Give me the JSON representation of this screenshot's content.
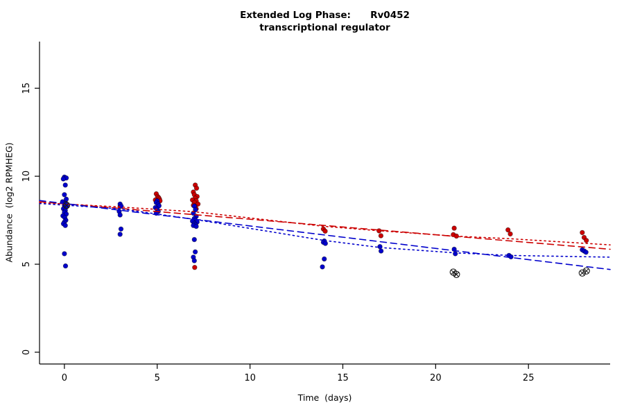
{
  "chart_data": {
    "type": "scatter",
    "title_line1": "Extended Log Phase:      Rv0452",
    "title_line2": "transcriptional regulator",
    "xlabel": "Time  (days)",
    "ylabel": "Abundance  (log2 RPMHEG)",
    "xlim": [
      -1.34,
      29.4
    ],
    "ylim": [
      -0.67,
      17.65
    ],
    "xticks": [
      0,
      5,
      10,
      15,
      20,
      25
    ],
    "yticks": [
      0,
      5,
      10,
      15
    ],
    "grid": false,
    "legend": "none",
    "axis_color": "#000000",
    "series": [
      {
        "name": "red-condition",
        "color": "#cc0000",
        "marker": "filled-circle",
        "points": [
          [
            0.05,
            8.52
          ],
          [
            0.12,
            8.3
          ],
          [
            3.0,
            8.28
          ],
          [
            4.95,
            9.0
          ],
          [
            5.02,
            8.85
          ],
          [
            5.08,
            8.78
          ],
          [
            5.12,
            8.7
          ],
          [
            4.9,
            8.65
          ],
          [
            5.15,
            8.6
          ],
          [
            5.0,
            8.55
          ],
          [
            7.05,
            9.5
          ],
          [
            7.12,
            9.32
          ],
          [
            6.95,
            9.1
          ],
          [
            7.0,
            8.95
          ],
          [
            7.15,
            8.85
          ],
          [
            7.05,
            8.75
          ],
          [
            6.9,
            8.65
          ],
          [
            7.1,
            8.6
          ],
          [
            7.0,
            8.5
          ],
          [
            7.2,
            8.42
          ],
          [
            6.95,
            8.35
          ],
          [
            7.05,
            8.28
          ],
          [
            7.1,
            8.15
          ],
          [
            7.02,
            4.82
          ],
          [
            13.95,
            7.0
          ],
          [
            14.05,
            6.88
          ],
          [
            16.95,
            6.9
          ],
          [
            17.05,
            6.62
          ],
          [
            21.0,
            7.05
          ],
          [
            20.95,
            6.68
          ],
          [
            21.12,
            6.6
          ],
          [
            23.9,
            6.95
          ],
          [
            24.02,
            6.72
          ],
          [
            27.9,
            6.8
          ],
          [
            28.0,
            6.52
          ],
          [
            28.12,
            6.35
          ]
        ]
      },
      {
        "name": "blue-condition",
        "color": "#0000cc",
        "marker": "filled-circle",
        "points": [
          [
            0.0,
            9.95
          ],
          [
            0.1,
            9.9
          ],
          [
            -0.06,
            9.85
          ],
          [
            0.05,
            9.5
          ],
          [
            0.0,
            8.95
          ],
          [
            0.1,
            8.7
          ],
          [
            -0.1,
            8.55
          ],
          [
            0.06,
            8.45
          ],
          [
            0.0,
            8.35
          ],
          [
            0.1,
            8.25
          ],
          [
            -0.05,
            8.15
          ],
          [
            0.05,
            8.05
          ],
          [
            0.0,
            7.95
          ],
          [
            0.1,
            7.85
          ],
          [
            -0.08,
            7.75
          ],
          [
            0.02,
            7.65
          ],
          [
            0.08,
            7.5
          ],
          [
            0.0,
            7.4
          ],
          [
            -0.05,
            7.3
          ],
          [
            0.05,
            7.2
          ],
          [
            0.0,
            5.6
          ],
          [
            0.06,
            4.9
          ],
          [
            3.0,
            8.42
          ],
          [
            3.06,
            8.3
          ],
          [
            2.95,
            8.0
          ],
          [
            3.0,
            7.8
          ],
          [
            3.05,
            7.0
          ],
          [
            3.0,
            6.7
          ],
          [
            5.0,
            8.6
          ],
          [
            4.95,
            8.5
          ],
          [
            5.05,
            8.42
          ],
          [
            5.1,
            8.32
          ],
          [
            4.9,
            8.22
          ],
          [
            5.0,
            8.12
          ],
          [
            5.06,
            8.0
          ],
          [
            4.95,
            7.9
          ],
          [
            7.0,
            8.3
          ],
          [
            7.06,
            8.1
          ],
          [
            6.95,
            7.9
          ],
          [
            7.1,
            7.72
          ],
          [
            7.0,
            7.6
          ],
          [
            7.05,
            7.5
          ],
          [
            6.9,
            7.45
          ],
          [
            7.15,
            7.4
          ],
          [
            7.0,
            7.32
          ],
          [
            7.06,
            7.25
          ],
          [
            6.95,
            7.2
          ],
          [
            7.1,
            7.15
          ],
          [
            7.0,
            6.4
          ],
          [
            7.05,
            5.7
          ],
          [
            6.95,
            5.4
          ],
          [
            7.0,
            5.2
          ],
          [
            14.0,
            6.32
          ],
          [
            13.95,
            6.25
          ],
          [
            14.06,
            6.18
          ],
          [
            14.0,
            5.3
          ],
          [
            13.9,
            4.85
          ],
          [
            17.0,
            6.0
          ],
          [
            17.06,
            5.75
          ],
          [
            21.0,
            5.85
          ],
          [
            21.06,
            5.6
          ],
          [
            23.95,
            5.5
          ],
          [
            24.06,
            5.42
          ],
          [
            27.9,
            5.82
          ],
          [
            28.0,
            5.75
          ],
          [
            28.1,
            5.68
          ]
        ]
      }
    ],
    "flagged_points": {
      "name": "circle-x-flagged",
      "color": "#1a1a1a",
      "marker": "circle-x",
      "points": [
        [
          0.12,
          8.35
        ],
        [
          20.95,
          4.55
        ],
        [
          21.12,
          4.42
        ],
        [
          27.9,
          4.5
        ],
        [
          28.12,
          4.62
        ]
      ]
    },
    "trend_lines": [
      {
        "name": "red-linear-fit",
        "color": "#cc0000",
        "style": "dashed",
        "points": [
          [
            -1.34,
            8.55
          ],
          [
            29.4,
            5.85
          ]
        ]
      },
      {
        "name": "red-smooth-fit",
        "color": "#cc0000",
        "style": "dotted",
        "points": [
          [
            -1.34,
            8.5
          ],
          [
            3,
            8.25
          ],
          [
            7,
            7.98
          ],
          [
            14,
            7.15
          ],
          [
            17,
            6.9
          ],
          [
            21,
            6.6
          ],
          [
            24,
            6.45
          ],
          [
            29.4,
            6.1
          ]
        ]
      },
      {
        "name": "blue-linear-fit",
        "color": "#0000cc",
        "style": "dashed",
        "points": [
          [
            -1.34,
            8.62
          ],
          [
            29.4,
            4.7
          ]
        ]
      },
      {
        "name": "blue-smooth-fit",
        "color": "#0000cc",
        "style": "dotted",
        "points": [
          [
            -1.34,
            8.45
          ],
          [
            3,
            8.15
          ],
          [
            7,
            7.55
          ],
          [
            14,
            6.35
          ],
          [
            17,
            5.95
          ],
          [
            21,
            5.65
          ],
          [
            24,
            5.5
          ],
          [
            29.4,
            5.4
          ]
        ]
      }
    ]
  }
}
